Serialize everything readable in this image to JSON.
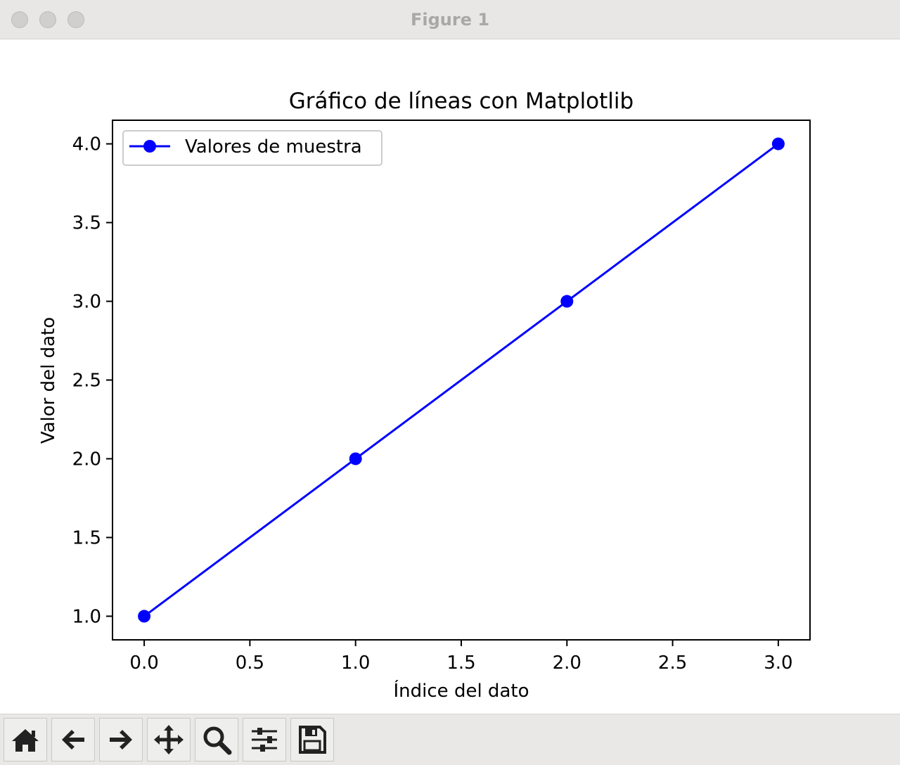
{
  "window": {
    "title": "Figure 1"
  },
  "toolbar": {
    "tools": [
      {
        "icon": "home-icon"
      },
      {
        "icon": "back-arrow-icon"
      },
      {
        "icon": "forward-arrow-icon"
      },
      {
        "icon": "pan-move-icon"
      },
      {
        "icon": "zoom-magnifier-icon"
      },
      {
        "icon": "configure-subplots-icon"
      },
      {
        "icon": "save-floppy-icon"
      }
    ]
  },
  "chart_data": {
    "type": "line",
    "title": "Gráfico de líneas con Matplotlib",
    "xlabel": "Índice del dato",
    "ylabel": "Valor del dato",
    "x": [
      0,
      1,
      2,
      3
    ],
    "series": [
      {
        "name": "Valores de muestra",
        "values": [
          1,
          2,
          3,
          4
        ],
        "color": "#0000ff",
        "marker": "circle"
      }
    ],
    "xlim": [
      -0.15,
      3.15
    ],
    "ylim": [
      0.85,
      4.15
    ],
    "xticks": [
      "0.0",
      "0.5",
      "1.0",
      "1.5",
      "2.0",
      "2.5",
      "3.0"
    ],
    "yticks": [
      "1.0",
      "1.5",
      "2.0",
      "2.5",
      "3.0",
      "3.5",
      "4.0"
    ],
    "grid": false,
    "legend": "upper-left"
  }
}
